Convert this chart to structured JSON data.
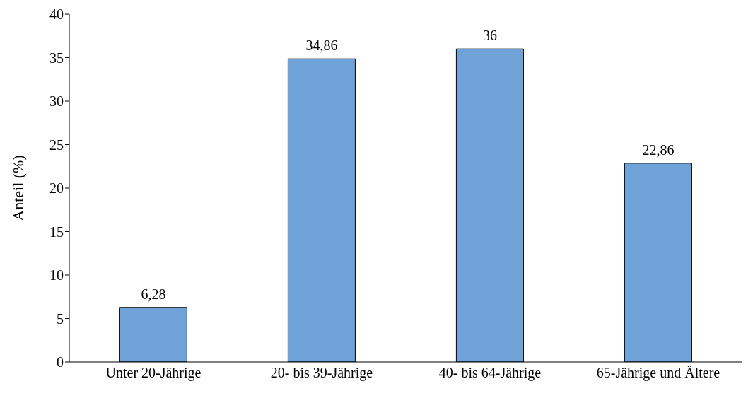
{
  "chart_data": {
    "type": "bar",
    "ylabel": "Anteil (%)",
    "categories": [
      "Unter 20-Jährige",
      "20- bis 39-Jährige",
      "40- bis 64-Jährige",
      "65-Jährige und Ältere"
    ],
    "values": [
      6.28,
      34.86,
      36,
      22.86
    ],
    "value_labels": [
      "6,28",
      "34,86",
      "36",
      "22,86"
    ],
    "color": "#6fa3d8",
    "ylim": [
      0,
      40
    ],
    "yticks": [
      0,
      5,
      10,
      15,
      20,
      25,
      30,
      35,
      40
    ],
    "grid": false,
    "legend": false
  }
}
